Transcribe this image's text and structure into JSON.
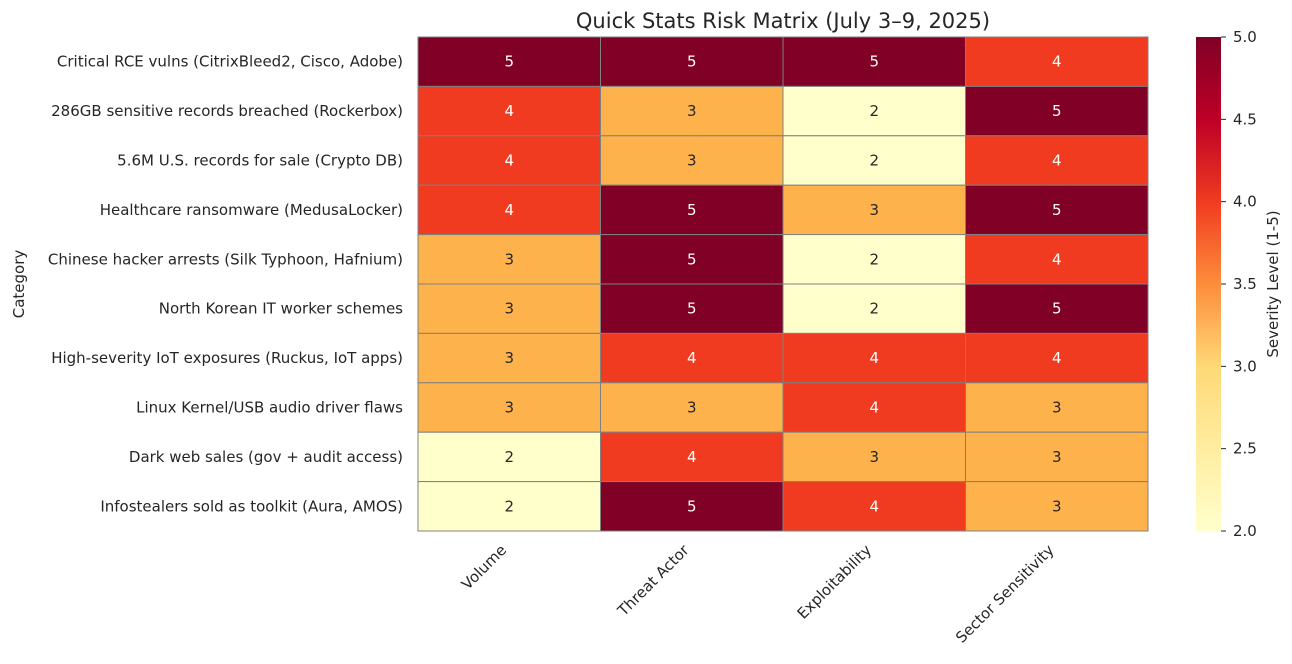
{
  "chart_data": {
    "type": "heatmap",
    "title": "Quick Stats Risk Matrix (July 3–9, 2025)",
    "ylabel": "Category",
    "xlabel": "",
    "x_categories": [
      "Volume",
      "Threat Actor",
      "Exploitability",
      "Sector Sensitivity"
    ],
    "y_categories": [
      "Critical RCE vulns (CitrixBleed2, Cisco, Adobe)",
      "286GB sensitive records breached (Rockerbox)",
      "5.6M U.S. records for sale (Crypto DB)",
      "Healthcare ransomware (MedusaLocker)",
      "Chinese hacker arrests (Silk Typhoon, Hafnium)",
      "North Korean IT worker schemes",
      "High-severity IoT exposures (Ruckus, IoT apps)",
      "Linux Kernel/USB audio driver flaws",
      "Dark web sales (gov + audit access)",
      "Infostealers sold as toolkit (Aura, AMOS)"
    ],
    "values": [
      [
        5,
        5,
        5,
        4
      ],
      [
        4,
        3,
        2,
        5
      ],
      [
        4,
        3,
        2,
        4
      ],
      [
        4,
        5,
        3,
        5
      ],
      [
        3,
        5,
        2,
        4
      ],
      [
        3,
        5,
        2,
        5
      ],
      [
        3,
        4,
        4,
        4
      ],
      [
        3,
        3,
        4,
        3
      ],
      [
        2,
        4,
        3,
        3
      ],
      [
        2,
        5,
        4,
        3
      ]
    ],
    "colorbar": {
      "label": "Severity Level (1-5)",
      "range": [
        2.0,
        5.0
      ],
      "ticks": [
        "2.0",
        "2.5",
        "3.0",
        "3.5",
        "4.0",
        "4.5",
        "5.0"
      ],
      "colormap": "YlOrRd"
    },
    "colors": {
      "2": "#ffffcc",
      "3": "#feb24c",
      "4": "#f03b20",
      "5": "#800026",
      "grid": "#808080"
    }
  }
}
